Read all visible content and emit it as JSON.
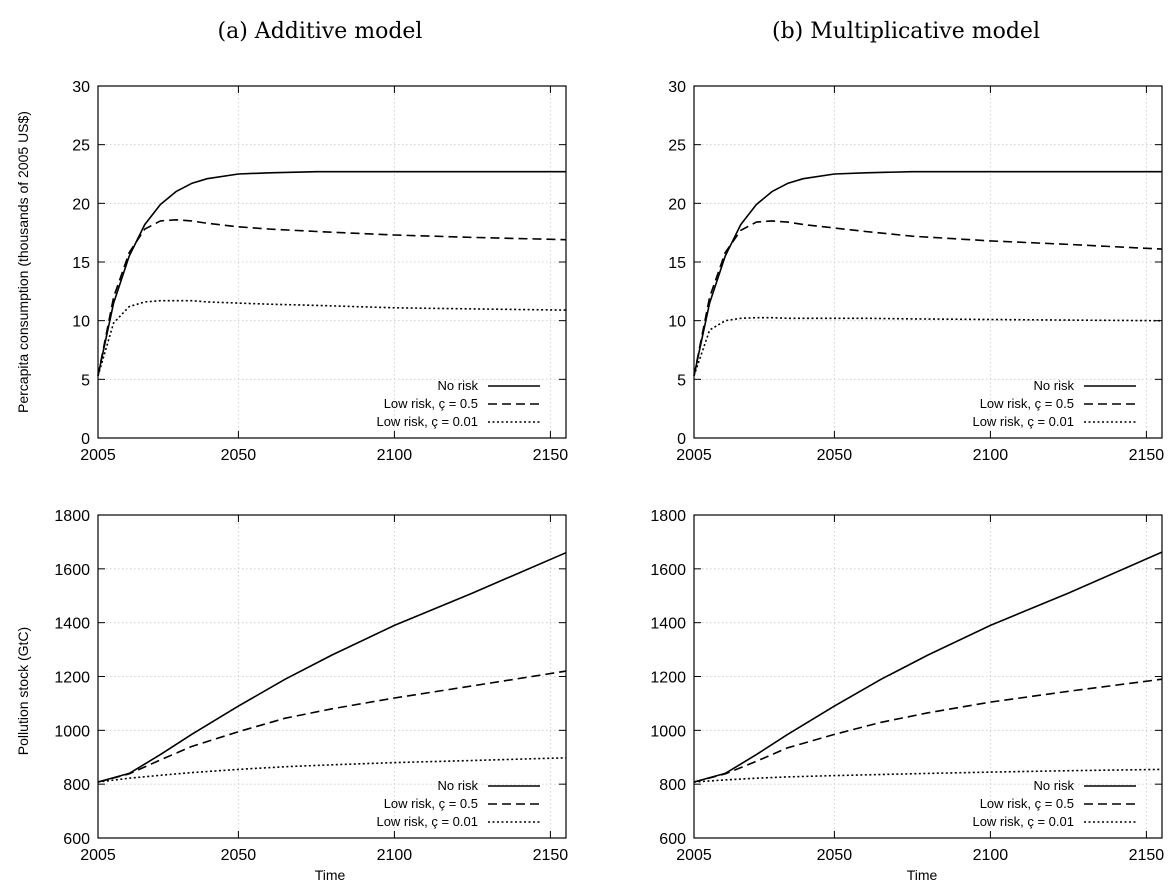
{
  "figure": {
    "col_titles": [
      "(a) Additive model",
      "(b) Multiplicative model"
    ],
    "xlabel": "Time",
    "ylabel_top": "Percapita consumption (thousands of 2005 US$)",
    "ylabel_bottom": "Pollution stock (GtC)"
  },
  "chart_data": [
    {
      "type": "line",
      "title": "(a) Additive model",
      "xlabel": "",
      "ylabel": "Percapita consumption (thousands of 2005 US$)",
      "xlim": [
        2005,
        2155
      ],
      "ylim": [
        0,
        30
      ],
      "xticks": [
        2005,
        2050,
        2100,
        2150
      ],
      "yticks": [
        0,
        5,
        10,
        15,
        20,
        25,
        30
      ],
      "grid": true,
      "legend_position": "bottom-right",
      "x": [
        2005,
        2010,
        2015,
        2020,
        2025,
        2030,
        2035,
        2040,
        2050,
        2060,
        2075,
        2100,
        2125,
        2155
      ],
      "series": [
        {
          "name": "No risk",
          "style": "solid",
          "values": [
            5.3,
            11.5,
            15.5,
            18.2,
            19.9,
            21.0,
            21.7,
            22.1,
            22.5,
            22.6,
            22.7,
            22.7,
            22.7,
            22.7
          ]
        },
        {
          "name": "Low risk, ç = 0.5",
          "style": "dashed",
          "values": [
            5.3,
            12.0,
            15.8,
            17.8,
            18.5,
            18.6,
            18.5,
            18.3,
            18.0,
            17.8,
            17.6,
            17.3,
            17.1,
            16.9
          ]
        },
        {
          "name": "Low risk, ç = 0.01",
          "style": "dotted",
          "values": [
            5.3,
            9.8,
            11.2,
            11.6,
            11.7,
            11.7,
            11.7,
            11.6,
            11.5,
            11.4,
            11.3,
            11.1,
            11.0,
            10.9
          ]
        }
      ]
    },
    {
      "type": "line",
      "title": "(b) Multiplicative model",
      "xlabel": "",
      "ylabel": "",
      "xlim": [
        2005,
        2155
      ],
      "ylim": [
        0,
        30
      ],
      "xticks": [
        2005,
        2050,
        2100,
        2150
      ],
      "yticks": [
        0,
        5,
        10,
        15,
        20,
        25,
        30
      ],
      "grid": true,
      "legend_position": "bottom-right",
      "x": [
        2005,
        2010,
        2015,
        2020,
        2025,
        2030,
        2035,
        2040,
        2050,
        2060,
        2075,
        2100,
        2125,
        2155
      ],
      "series": [
        {
          "name": "No risk",
          "style": "solid",
          "values": [
            5.3,
            11.5,
            15.5,
            18.2,
            19.9,
            21.0,
            21.7,
            22.1,
            22.5,
            22.6,
            22.7,
            22.7,
            22.7,
            22.7
          ]
        },
        {
          "name": "Low risk, ç = 0.5",
          "style": "dashed",
          "values": [
            5.3,
            12.0,
            15.8,
            17.7,
            18.4,
            18.5,
            18.4,
            18.2,
            17.9,
            17.6,
            17.2,
            16.8,
            16.5,
            16.1
          ]
        },
        {
          "name": "Low risk, ç = 0.01",
          "style": "dotted",
          "values": [
            5.3,
            9.2,
            10.0,
            10.2,
            10.25,
            10.25,
            10.2,
            10.2,
            10.2,
            10.2,
            10.15,
            10.1,
            10.05,
            10.0
          ]
        }
      ]
    },
    {
      "type": "line",
      "title": "",
      "xlabel": "Time",
      "ylabel": "Pollution stock (GtC)",
      "xlim": [
        2005,
        2155
      ],
      "ylim": [
        600,
        1800
      ],
      "xticks": [
        2005,
        2050,
        2100,
        2150
      ],
      "yticks": [
        600,
        800,
        1000,
        1200,
        1400,
        1600,
        1800
      ],
      "grid": true,
      "legend_position": "bottom-right",
      "x": [
        2005,
        2015,
        2025,
        2035,
        2050,
        2065,
        2080,
        2100,
        2125,
        2155
      ],
      "series": [
        {
          "name": "No risk",
          "style": "solid",
          "values": [
            808,
            840,
            910,
            985,
            1090,
            1190,
            1280,
            1390,
            1510,
            1660
          ]
        },
        {
          "name": "Low risk, ç = 0.5",
          "style": "dashed",
          "values": [
            808,
            838,
            890,
            940,
            995,
            1045,
            1080,
            1120,
            1165,
            1220
          ]
        },
        {
          "name": "Low risk, ç = 0.01",
          "style": "dotted",
          "values": [
            808,
            822,
            833,
            843,
            855,
            865,
            872,
            880,
            888,
            898
          ]
        }
      ]
    },
    {
      "type": "line",
      "title": "",
      "xlabel": "Time",
      "ylabel": "",
      "xlim": [
        2005,
        2155
      ],
      "ylim": [
        600,
        1800
      ],
      "xticks": [
        2005,
        2050,
        2100,
        2150
      ],
      "yticks": [
        600,
        800,
        1000,
        1200,
        1400,
        1600,
        1800
      ],
      "grid": true,
      "legend_position": "bottom-right",
      "x": [
        2005,
        2015,
        2025,
        2035,
        2050,
        2065,
        2080,
        2100,
        2125,
        2155
      ],
      "series": [
        {
          "name": "No risk",
          "style": "solid",
          "values": [
            808,
            840,
            910,
            985,
            1090,
            1190,
            1280,
            1390,
            1510,
            1662
          ]
        },
        {
          "name": "Low risk, ç = 0.5",
          "style": "dashed",
          "values": [
            808,
            838,
            885,
            935,
            985,
            1030,
            1065,
            1105,
            1145,
            1190
          ]
        },
        {
          "name": "Low risk, ç = 0.01",
          "style": "dotted",
          "values": [
            808,
            816,
            822,
            827,
            832,
            836,
            840,
            845,
            850,
            855
          ]
        }
      ]
    }
  ]
}
